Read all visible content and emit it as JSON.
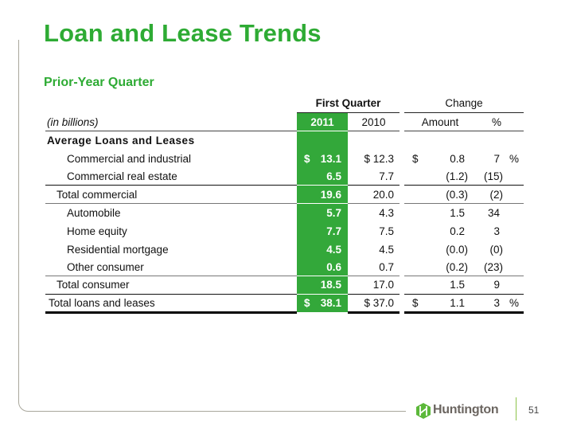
{
  "slide": {
    "title": "Loan and Lease Trends",
    "subtitle": "Prior-Year Quarter",
    "page_number": "51",
    "accent_color": "#2eab34"
  },
  "table": {
    "group_headers": {
      "first_quarter": "First Quarter",
      "change": "Change"
    },
    "col_headers": {
      "units": "(in billions)",
      "y2011": "2011",
      "y2010": "2010",
      "amount": "Amount",
      "pct": "%"
    },
    "section_label": "Average Loans and Leases",
    "rows": [
      {
        "label": "Commercial and industrial",
        "cur_sign": "$",
        "y2011": "13.1",
        "y2010": "$ 12.3",
        "amt_sign": "$",
        "amount": "0.8",
        "pct": "7",
        "pct_sign": "%"
      },
      {
        "label": "Commercial real estate",
        "y2011": "6.5",
        "y2010": "7.7",
        "amount": "(1.2)",
        "pct": "(15)"
      },
      {
        "label": "Total commercial",
        "y2011": "19.6",
        "y2010": "20.0",
        "amount": "(0.3)",
        "pct": "(2)"
      },
      {
        "label": "Automobile",
        "y2011": "5.7",
        "y2010": "4.3",
        "amount": "1.5",
        "pct": "34"
      },
      {
        "label": "Home equity",
        "y2011": "7.7",
        "y2010": "7.5",
        "amount": "0.2",
        "pct": "3"
      },
      {
        "label": "Residential mortgage",
        "y2011": "4.5",
        "y2010": "4.5",
        "amount": "(0.0)",
        "pct": "(0)"
      },
      {
        "label": "Other consumer",
        "y2011": "0.6",
        "y2010": "0.7",
        "amount": "(0.2)",
        "pct": "(23)"
      },
      {
        "label": "Total consumer",
        "y2011": "18.5",
        "y2010": "17.0",
        "amount": "1.5",
        "pct": "9"
      },
      {
        "label": "Total loans and leases",
        "cur_sign": "$",
        "y2011": "38.1",
        "y2010": "$ 37.0",
        "amt_sign": "$",
        "amount": "1.1",
        "pct": "3",
        "pct_sign": "%"
      }
    ]
  },
  "footer": {
    "logo_text": "Huntington",
    "logo_icon": "huntington-hexagon-logo"
  }
}
